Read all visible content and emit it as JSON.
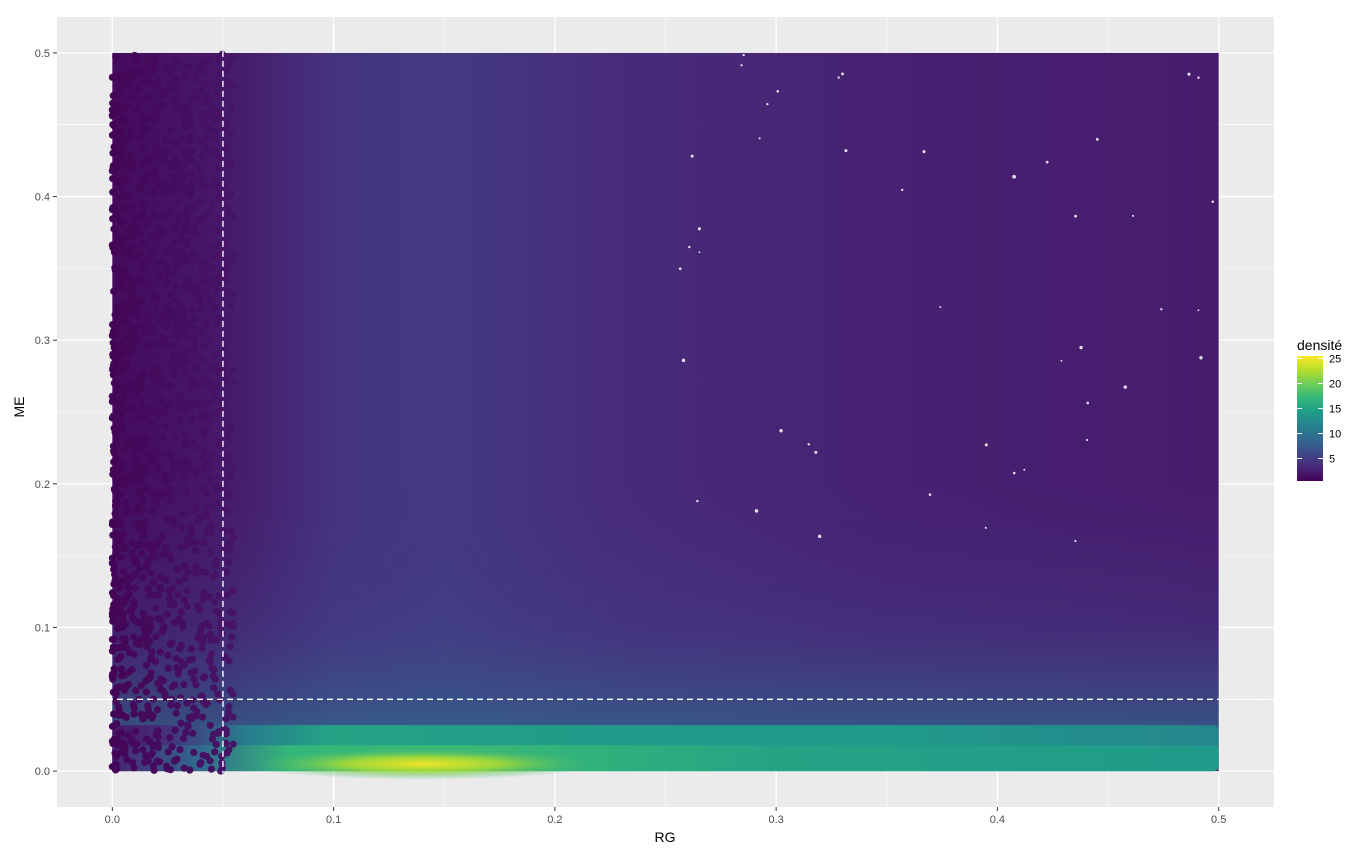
{
  "chart_data": {
    "type": "scatter",
    "subtype": "density-colored scatter",
    "title": "",
    "xlabel": "RG",
    "ylabel": "ME",
    "xlim": [
      -0.025,
      0.525
    ],
    "ylim": [
      -0.025,
      0.525
    ],
    "x_ticks": [
      0.0,
      0.1,
      0.2,
      0.3,
      0.4,
      0.5
    ],
    "x_tick_labels": [
      "0.0",
      "0.1",
      "0.2",
      "0.3",
      "0.4",
      "0.5"
    ],
    "y_ticks": [
      0.0,
      0.1,
      0.2,
      0.3,
      0.4,
      0.5
    ],
    "y_tick_labels": [
      "0.0",
      "0.1",
      "0.2",
      "0.3",
      "0.4",
      "0.5"
    ],
    "x_range_data": [
      0.0,
      0.5
    ],
    "y_range_data": [
      0.0,
      0.5
    ],
    "reference_lines": [
      {
        "orientation": "vertical",
        "x": 0.05,
        "style": "dashed",
        "color": "#ffffff"
      },
      {
        "orientation": "horizontal",
        "y": 0.05,
        "style": "dashed",
        "color": "#ffffff"
      }
    ],
    "density_peak": {
      "x": 0.14,
      "y": 0.005,
      "density": 25
    },
    "grid": true,
    "panel_background": "#ebebeb",
    "grid_color": "#ffffff",
    "legend": {
      "title": "densité",
      "placement": "right",
      "tick_labels": [
        "25",
        "20",
        "15",
        "10",
        "5"
      ],
      "tick_values": [
        25,
        20,
        15,
        10,
        5
      ],
      "range": [
        0.5,
        25.5
      ],
      "colormap": "viridis",
      "colors": [
        "#440154",
        "#482878",
        "#3e4989",
        "#31688e",
        "#26828e",
        "#1f9e89",
        "#35b779",
        "#6ece58",
        "#b5de2b",
        "#fde725"
      ]
    }
  }
}
